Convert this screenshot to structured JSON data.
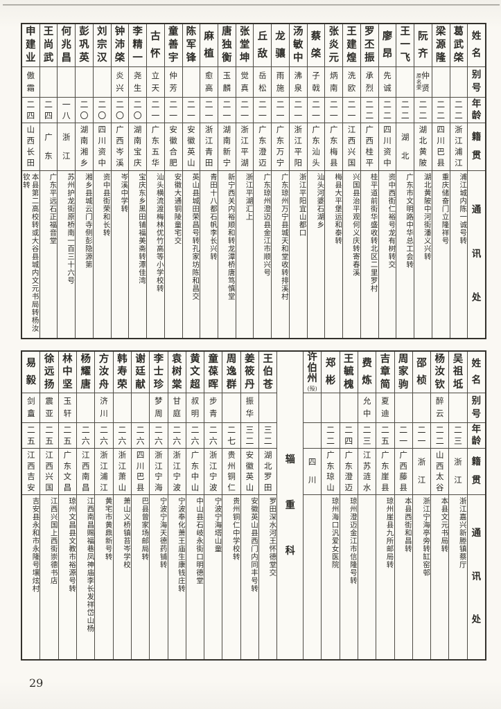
{
  "page": {
    "number": "29"
  },
  "headers": {
    "name": "姓名",
    "alias": "别号",
    "age": "年龄",
    "origin": "籍贯",
    "address": "通讯处"
  },
  "sections": [
    {
      "people": [
        {
          "name": "葛武棨",
          "alias": "",
          "age": "二二",
          "origin": "浙江浦江",
          "address": "浦江城内陈一诚号转"
        },
        {
          "name": "梁源隆",
          "alias": "",
          "age": "二二",
          "origin": "四川巴县",
          "address": "重庆储奋门立隆祥号"
        },
        {
          "name": "阮齐",
          "alias": "仲贤",
          "alias_note": "原名荣",
          "age": "二二",
          "origin": "湖北黄陂",
          "address": "湖北黄陂中河街潘义兴转"
        },
        {
          "name": "王一飞",
          "alias": "",
          "age": "二二",
          "origin": "湖北",
          "address": "广东市文明路中华总工会转"
        },
        {
          "name": "廖昂",
          "alias": "先诚",
          "age": "二二",
          "origin": "四川资中",
          "address": "资中西街仁裕号龙有树转交"
        },
        {
          "name": "罗丕振",
          "alias": "承烈",
          "age": "二二",
          "origin": "广西桂平",
          "address": "桂平道前街华盛收转北区二里罗村"
        },
        {
          "name": "王建煌",
          "alias": "洗欧",
          "age": "二一",
          "origin": "江西兴国",
          "address": "兴国县治平观何义庆转寄春溪"
        },
        {
          "name": "张炎元",
          "alias": "炳南",
          "age": "二一",
          "origin": "广东梅县",
          "address": "梅县大平堡运和泰转"
        },
        {
          "name": "蔡棨",
          "alias": "子戟",
          "age": "二一",
          "origin": "广东汕头",
          "address": "汕头河婆石湖乡"
        },
        {
          "name": "汤敏中",
          "alias": "沸泉",
          "age": "二一",
          "origin": "浙江平阳",
          "address": "浙江平阳宜山都口"
        },
        {
          "name": "龙骧",
          "alias": "雨施",
          "age": "二一",
          "origin": "广东万宁",
          "address": "广东琼州万宁县城天和堂收转排溪村"
        },
        {
          "name": "丘敌",
          "alias": "岳松",
          "age": "二一",
          "origin": "广东澄迈",
          "address": "广东琼州澄迈县金江市顺兴号"
        },
        {
          "name": "张堂坤",
          "alias": "觉真",
          "age": "二一",
          "origin": "浙江平湖",
          "address": "浙江平湖汇上"
        },
        {
          "name": "唐独衡",
          "alias": "玉麟",
          "age": "二一",
          "origin": "湖南新宁",
          "address": "新宁西关内裕顺和转龙潭桥唐笃慎堂"
        },
        {
          "name": "麻植",
          "alias": "愈高",
          "age": "二一",
          "origin": "浙江青田",
          "address": "青田十八都石帆李长兴转"
        },
        {
          "name": "陈军锋",
          "alias": "",
          "age": "二一",
          "origin": "安徽英山",
          "address": "英山县城田荣昌号转孔家坊陈和昌交"
        },
        {
          "name": "童善宇",
          "alias": "仲芳",
          "age": "二一",
          "origin": "安徽合肥",
          "address": "安徽大通铜陵童宅交"
        },
        {
          "name": "古怀",
          "alias": "立天",
          "age": "二一",
          "origin": "广东五华",
          "address": "汕头横流渡梅林优竹高等小学校转"
        },
        {
          "name": "李精一",
          "alias": "尧生",
          "age": "二〇",
          "origin": "湖南宝庆",
          "address": "宝庆东乡黑田铺福美斋转潭佳湾"
        },
        {
          "name": "钟沛棨",
          "alias": "炎兴",
          "age": "二〇",
          "origin": "广西岑溪",
          "address": "岑溪中学转"
        },
        {
          "name": "刘宗汉",
          "alias": "",
          "age": "二〇",
          "origin": "四川资中",
          "address": "资中县街荣和长转"
        },
        {
          "name": "彭巩英",
          "alias": "",
          "age": "二〇",
          "origin": "湖南湘乡",
          "address": "湘乡县城云门寺侧彭隐源第"
        },
        {
          "name": "何兆昌",
          "alias": "",
          "age": "一八",
          "origin": "浙江",
          "address": "苏州护龙街原桥南一百三十六号"
        },
        {
          "name": "王尚武",
          "alias": "",
          "age": "二四",
          "origin": "广东",
          "address": "广东平远石正福音堂"
        },
        {
          "name": "申建业",
          "alias": "傲霜",
          "age": "二四",
          "origin": "山西长田",
          "address": "本县第二高校转或大谷县城内文元书局转杨汝钦转"
        }
      ]
    },
    {
      "divider": "辎重科",
      "divider_index": 9,
      "people": [
        {
          "name": "吴祖坻",
          "alias": "",
          "age": "二三",
          "origin": "浙江",
          "address": "浙江嘉兴新塍镇蔡厅"
        },
        {
          "name": "杨汝钦",
          "alias": "醉云",
          "age": "二二",
          "origin": "山西太谷",
          "address": "本县文元书局转"
        },
        {
          "name": "邵桢",
          "alias": "",
          "age": "二一",
          "origin": "浙江",
          "address": "浙江宁海亭旁转缸窑邨"
        },
        {
          "name": "周家驹",
          "alias": "",
          "age": "二一",
          "origin": "广西藤县",
          "address": "本县西街和昌转"
        },
        {
          "name": "吉章简",
          "alias": "夏迪",
          "age": "二五",
          "origin": "广东崖县",
          "address": "琼州崖县九所邮局转"
        },
        {
          "name": "费炼",
          "alias": "允中",
          "age": "二三",
          "origin": "江苏涟水",
          "address": ""
        },
        {
          "name": "王毓槐",
          "alias": "",
          "age": "二四",
          "origin": "广东澄迈",
          "address": "琼州澄迈金江市信隆号转"
        },
        {
          "name": "郑彬",
          "alias": "",
          "age": "二二",
          "origin": "广东琼山",
          "address": "琼州海口汎爱女医院"
        },
        {
          "name": "许伯州",
          "alias": "",
          "note": "殁",
          "age": "",
          "origin": "四川",
          "address": ""
        },
        {
          "name": "王伯苍",
          "alias": "",
          "age": "三二",
          "origin": "湖北罗田",
          "address": "罗田深水河王怀德堂交"
        },
        {
          "name": "姜筱丹",
          "alias": "振华",
          "age": "三二",
          "origin": "安徽英山",
          "address": "安徽英山县西门内同丰号转"
        },
        {
          "name": "周逸群",
          "alias": "",
          "age": "二七",
          "origin": "贵州铜仁",
          "address": "贵州铜仁中学校转"
        },
        {
          "name": "童葆晖",
          "alias": "步青",
          "age": "二六",
          "origin": "浙江宁波",
          "address": "宁波宁海塔山童"
        },
        {
          "name": "黄文超",
          "alias": "叔明",
          "age": "二六",
          "origin": "广东中山",
          "address": "中山县石岐永街口明德堂"
        },
        {
          "name": "袁树棠",
          "alias": "甘庭",
          "age": "二六",
          "origin": "浙江宁波",
          "address": "宁波奉化萧王庙生康钱庄转"
        },
        {
          "name": "李士珍",
          "alias": "梦周",
          "age": "二六",
          "origin": "浙江宁海",
          "address": "宁波宁海天德药铺转"
        },
        {
          "name": "谢廷献",
          "alias": "",
          "age": "二六",
          "origin": "四川巴县",
          "address": "巴县曾家场邮局转"
        },
        {
          "name": "韩寿荣",
          "alias": "",
          "age": "二六",
          "origin": "浙江萧山",
          "address": "萧山义桥镇苔岑学校"
        },
        {
          "name": "方汝舟",
          "alias": "济川",
          "age": "二六",
          "origin": "浙江浦江",
          "address": "黄宅市黄鼎新号转"
        },
        {
          "name": "杨耀唐",
          "alias": "",
          "age": "二六",
          "origin": "江西南昌",
          "address": "江西南昌赐福巷凤神庙李长发祥岱山杨"
        },
        {
          "name": "林中坚",
          "alias": "玉轩",
          "age": "二五",
          "origin": "广东文昌",
          "address": "琼州文昌县文教市裕源号转"
        },
        {
          "name": "徐远扬",
          "alias": "震亚",
          "age": "二五",
          "origin": "江西兴国",
          "address": "江西兴国上西街崇德书店"
        },
        {
          "name": "易毅",
          "alias": "剑盫",
          "age": "二五",
          "origin": "江西吉安",
          "address": "吉安县永和市永隆号壤炫村"
        }
      ]
    }
  ]
}
